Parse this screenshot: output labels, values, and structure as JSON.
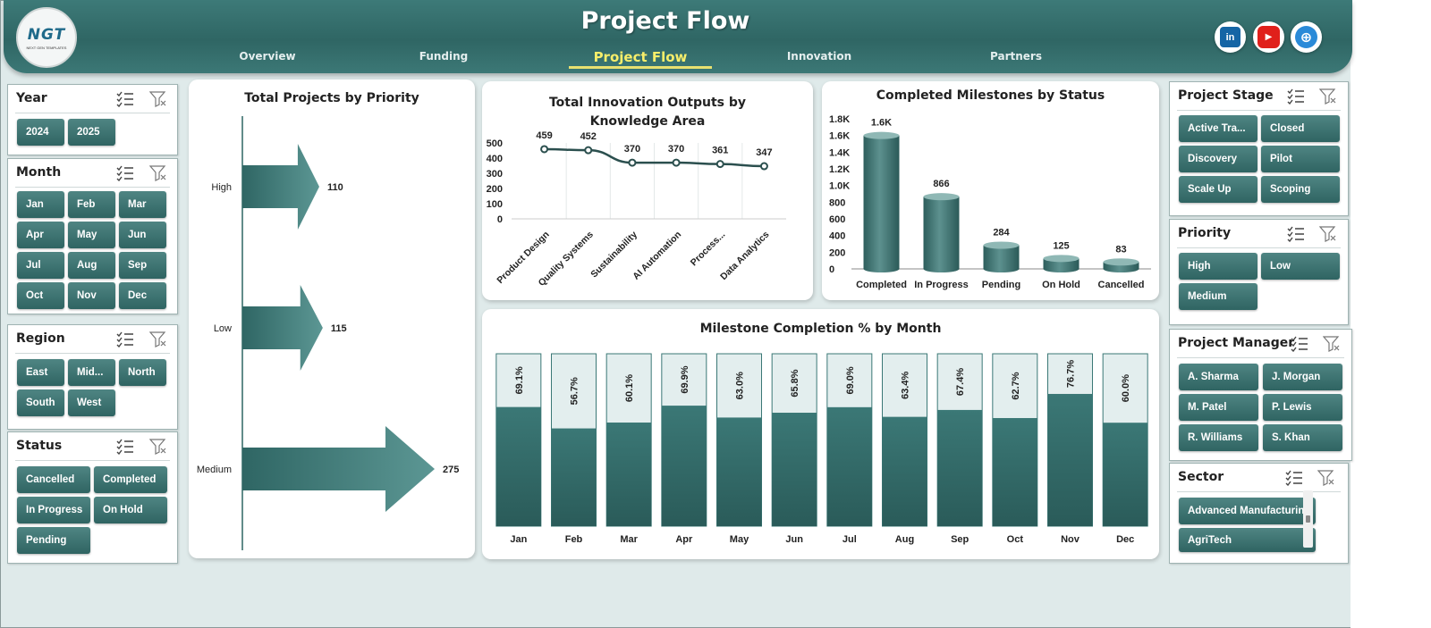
{
  "header": {
    "title": "Project Flow",
    "logo_text": "NGT",
    "logo_subtext": "NEXT GEN TEMPLATES",
    "nav": [
      {
        "label": "Overview",
        "active": false
      },
      {
        "label": "Funding",
        "active": false
      },
      {
        "label": "Project Flow",
        "active": true
      },
      {
        "label": "Innovation",
        "active": false
      },
      {
        "label": "Partners",
        "active": false
      }
    ],
    "social": [
      {
        "name": "linkedin-icon",
        "glyph": "in",
        "color": "#1565a5"
      },
      {
        "name": "youtube-icon",
        "glyph": "▶",
        "color": "#e0201b"
      },
      {
        "name": "globe-icon",
        "glyph": "⊕",
        "color": "#2a8ad8"
      }
    ]
  },
  "slicers": {
    "year": {
      "title": "Year",
      "items": [
        "2024",
        "2025"
      ]
    },
    "month": {
      "title": "Month",
      "items": [
        "Jan",
        "Feb",
        "Mar",
        "Apr",
        "May",
        "Jun",
        "Jul",
        "Aug",
        "Sep",
        "Oct",
        "Nov",
        "Dec"
      ]
    },
    "region": {
      "title": "Region",
      "items": [
        "East",
        "Mid...",
        "North",
        "South",
        "West"
      ]
    },
    "status": {
      "title": "Status",
      "items": [
        "Cancelled",
        "Completed",
        "In Progress",
        "On Hold",
        "Pending"
      ]
    },
    "project_stage": {
      "title": "Project Stage",
      "items": [
        "Active Tra...",
        "Closed",
        "Discovery",
        "Pilot",
        "Scale Up",
        "Scoping"
      ]
    },
    "priority": {
      "title": "Priority",
      "items": [
        "High",
        "Low",
        "Medium"
      ]
    },
    "project_manager": {
      "title": "Project Manager",
      "items": [
        "A. Sharma",
        "J. Morgan",
        "M. Patel",
        "P. Lewis",
        "R. Williams",
        "S. Khan"
      ]
    },
    "sector": {
      "title": "Sector",
      "items": [
        "Advanced Manufacturing",
        "AgriTech"
      ]
    }
  },
  "chart_data": [
    {
      "type": "bar",
      "title": "Total Projects by Priority",
      "categories": [
        "High",
        "Low",
        "Medium"
      ],
      "values": [
        110,
        115,
        275
      ]
    },
    {
      "type": "line",
      "title": "Total Innovation  Outputs by Knowledge Area",
      "categories": [
        "Product Design",
        "Quality Systems",
        "Sustainability",
        "AI Automation",
        "Process...",
        "Data Analytics"
      ],
      "values": [
        459,
        452,
        370,
        370,
        361,
        347
      ],
      "y_ticks": [
        "500",
        "400",
        "300",
        "200",
        "100",
        "0"
      ],
      "ylim": [
        0,
        500
      ]
    },
    {
      "type": "bar",
      "title": "Completed Milestones  by Status",
      "categories": [
        "Completed",
        "In Progress",
        "Pending",
        "On Hold",
        "Cancelled"
      ],
      "values": [
        1600,
        866,
        284,
        125,
        83
      ],
      "data_labels": [
        "1.6K",
        "866",
        "284",
        "125",
        "83"
      ],
      "y_ticks": [
        "1.8K",
        "1.6K",
        "1.4K",
        "1.2K",
        "1.0K",
        "800",
        "600",
        "400",
        "200",
        "0"
      ],
      "ylim": [
        0,
        1800
      ]
    },
    {
      "type": "bar",
      "title": "Milestone Completion % by Month",
      "categories": [
        "Jan",
        "Feb",
        "Mar",
        "Apr",
        "May",
        "Jun",
        "Jul",
        "Aug",
        "Sep",
        "Oct",
        "Nov",
        "Dec"
      ],
      "values": [
        69.1,
        56.7,
        60.1,
        69.9,
        63.0,
        65.8,
        69.0,
        63.4,
        67.4,
        62.7,
        76.7,
        60.0
      ],
      "data_labels": [
        "69.1%",
        "56.7%",
        "60.1%",
        "69.9%",
        "63.0%",
        "65.8%",
        "69.0%",
        "63.4%",
        "67.4%",
        "62.7%",
        "76.7%",
        "60.0%"
      ],
      "ylim": [
        0,
        100
      ]
    }
  ],
  "colors": {
    "accent": "#3d7a78",
    "bar_dark": "#2f6664",
    "nav_active": "#f7ee6a",
    "bg": "#dfeaea"
  }
}
